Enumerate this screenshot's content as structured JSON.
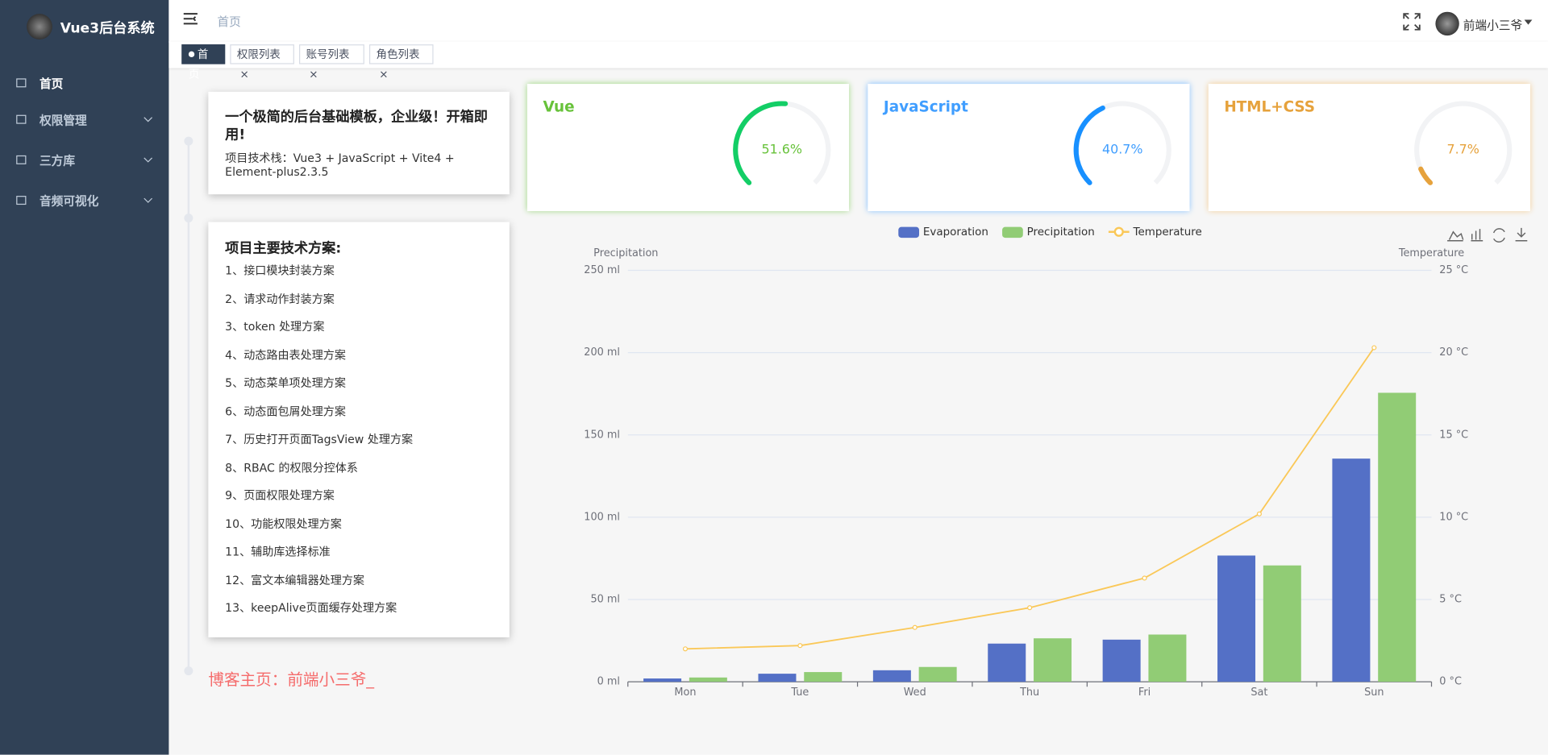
{
  "sidebar": {
    "title": "Vue3后台系统",
    "menu": [
      "首页",
      "权限管理",
      "三方库",
      "音频可视化"
    ]
  },
  "header": {
    "breadcrumb": "首页",
    "user": "前端小三爷"
  },
  "tabs": [
    "首页",
    "权限列表",
    "账号列表",
    "角色列表"
  ],
  "intro": {
    "title": "一个极简的后台基础模板，企业级！开箱即用!",
    "stack": "项目技术栈：Vue3 + JavaScript + Vite4 + Element-plus2.3.5"
  },
  "plans": {
    "title": "项目主要技术方案:",
    "items": [
      "1、接口模块封装方案",
      "2、请求动作封装方案",
      "3、token 处理方案",
      "4、动态路由表处理方案",
      "5、动态菜单项处理方案",
      "6、动态面包屑处理方案",
      "7、历史打开页面TagsView 处理方案",
      "8、RBAC 的权限分控体系",
      "9、页面权限处理方案",
      "10、功能权限处理方案",
      "11、辅助库选择标准",
      "12、富文本编辑器处理方案",
      "13、keepAlive页面缓存处理方案"
    ]
  },
  "blog": "博客主页：前端小三爷_",
  "gauges": [
    {
      "name": "Vue",
      "value": 51.6,
      "label": "51.6%",
      "color": "#13ce66",
      "title_color": "#67c23a",
      "shadow": "#95d475"
    },
    {
      "name": "JavaScript",
      "value": 40.7,
      "label": "40.7%",
      "color": "#1890ff",
      "title_color": "#409eff",
      "shadow": "#79bbff"
    },
    {
      "name": "HTML+CSS",
      "value": 7.7,
      "label": "7.7%",
      "color": "#e6a23c",
      "title_color": "#e6a23c",
      "shadow": "#f3c98b"
    }
  ],
  "chart_data": {
    "type": "bar",
    "categories": [
      "Mon",
      "Tue",
      "Wed",
      "Thu",
      "Fri",
      "Sat",
      "Sun"
    ],
    "series": [
      {
        "name": "Evaporation",
        "color": "#5470c6",
        "values": [
          2.0,
          4.9,
          7.0,
          23.2,
          25.6,
          76.7,
          135.6
        ]
      },
      {
        "name": "Precipitation",
        "color": "#91cc75",
        "values": [
          2.6,
          5.9,
          9.0,
          26.4,
          28.7,
          70.7,
          175.6
        ]
      },
      {
        "name": "Temperature",
        "color": "#fac858",
        "type": "line",
        "axis": "y2",
        "values": [
          2.0,
          2.2,
          3.3,
          4.5,
          6.3,
          10.2,
          20.3
        ]
      }
    ],
    "y_label": "Precipitation",
    "y2_label": "Temperature",
    "ylim": [
      0,
      250
    ],
    "yticks": [
      {
        "value": 0,
        "label": "0 ml"
      },
      {
        "value": 50,
        "label": "50 ml"
      },
      {
        "value": 100,
        "label": "100 ml"
      },
      {
        "value": 150,
        "label": "150 ml"
      },
      {
        "value": 200,
        "label": "200 ml"
      },
      {
        "value": 250,
        "label": "250 ml"
      }
    ],
    "y2lim": [
      0,
      25
    ],
    "y2ticks": [
      {
        "value": 0,
        "label": "0 °C"
      },
      {
        "value": 5,
        "label": "5 °C"
      },
      {
        "value": 10,
        "label": "10 °C"
      },
      {
        "value": 15,
        "label": "15 °C"
      },
      {
        "value": 20,
        "label": "20 °C"
      },
      {
        "value": 25,
        "label": "25 °C"
      }
    ],
    "grid": true
  }
}
